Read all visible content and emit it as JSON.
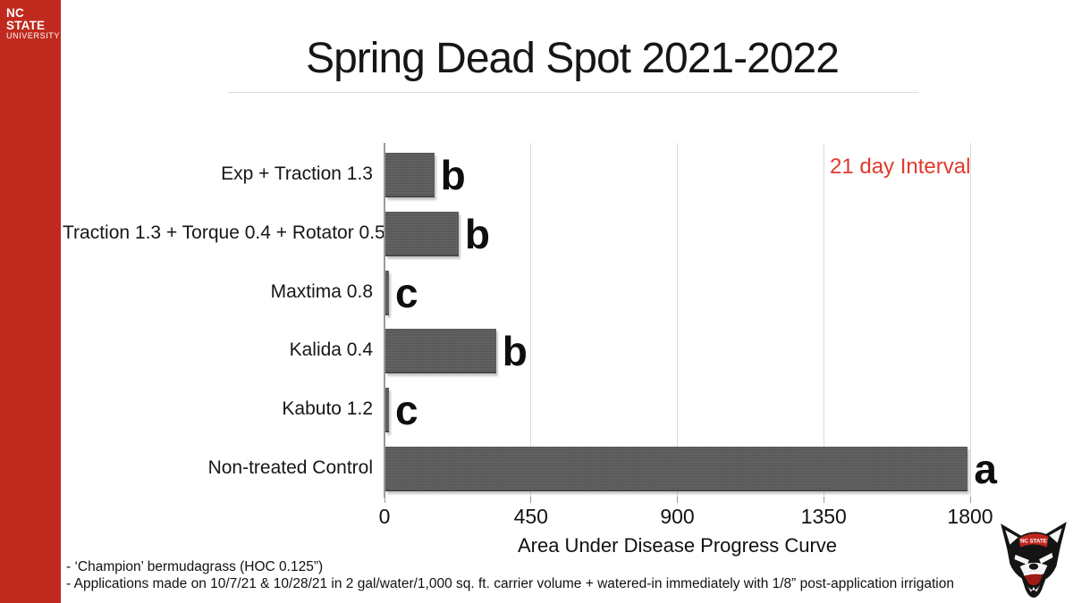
{
  "slide": {
    "title": "Spring Dead Spot 2021-2022",
    "annotation": "21 day Interval",
    "footnote1": "- ‘Champion’ bermudagrass (HOC 0.125”)",
    "footnote2": "- Applications made on 10/7/21 & 10/28/21 in 2 gal/water/1,000 sq. ft. carrier volume + watered-in immediately with 1/8” post-application irrigation"
  },
  "branding": {
    "org_line1": "NC STATE",
    "org_line2": "UNIVERSITY",
    "sidebar_color": "#c02a1e",
    "logo_icon": "wolf-mascot-icon"
  },
  "chart_data": {
    "type": "bar",
    "orientation": "horizontal",
    "title": "Spring Dead Spot 2021-2022",
    "categories": [
      "Exp + Traction 1.3",
      "Traction 1.3 + Torque 0.4 + Rotator 0.5",
      "Maxtima 0.8",
      "Kalida 0.4",
      "Kabuto 1.2",
      "Non-treated Control"
    ],
    "values": [
      150,
      225,
      10,
      340,
      10,
      1790
    ],
    "significance_letters": [
      "b",
      "b",
      "c",
      "b",
      "c",
      "a"
    ],
    "xlabel": "Area Under Disease Progress Curve",
    "xticks": [
      0,
      450,
      900,
      1350,
      1800
    ],
    "xlim": [
      0,
      1800
    ],
    "bar_color": "#5e5e5e",
    "grid": true,
    "legend": "none",
    "annotation": {
      "text": "21 day Interval",
      "color": "#e03a2c",
      "position": "top-right"
    }
  }
}
